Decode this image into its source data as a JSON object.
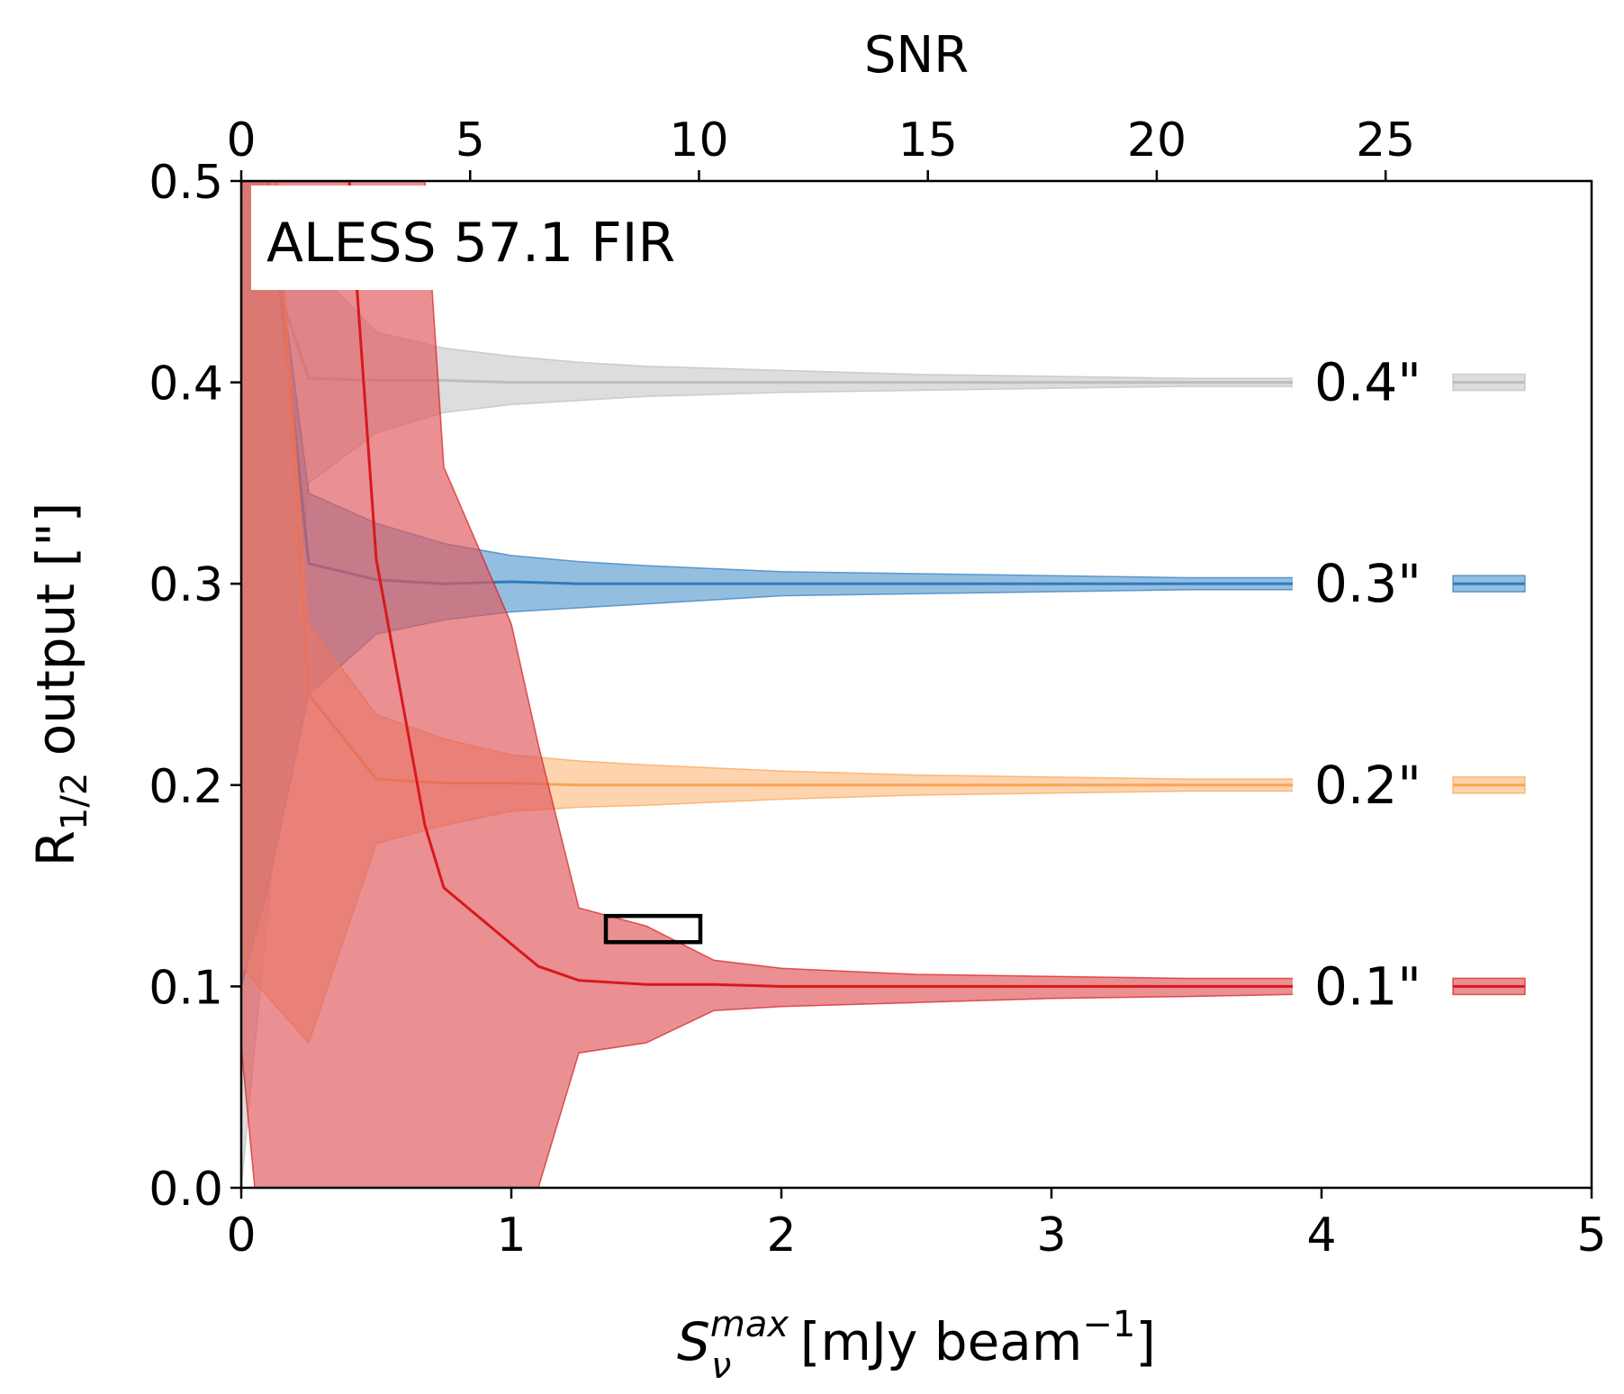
{
  "chart_data": {
    "type": "area",
    "annotation": "ALESS 57.1 FIR",
    "xlabel_main": "S",
    "xlabel_sup": "max",
    "xlabel_sub": "ν",
    "xlabel_rest": " [mJy beam",
    "xlabel_unit_sup": "−1",
    "xlabel_close": "]",
    "ylabel_main": "R",
    "ylabel_sub": "1/2",
    "ylabel_rest": " output [\"]",
    "top_xlabel": "SNR",
    "xlim": [
      0,
      5
    ],
    "ylim": [
      0,
      0.5
    ],
    "top_xlim": [
      0,
      29.5
    ],
    "xticks": [
      0,
      1,
      2,
      3,
      4,
      5
    ],
    "xtick_labels": [
      "0",
      "1",
      "2",
      "3",
      "4",
      "5"
    ],
    "yticks": [
      0,
      0.1,
      0.2,
      0.3,
      0.4,
      0.5
    ],
    "ytick_labels": [
      "0.0",
      "0.1",
      "0.2",
      "0.3",
      "0.4",
      "0.5"
    ],
    "top_xticks": [
      0,
      5,
      10,
      15,
      20,
      25
    ],
    "top_xtick_labels": [
      "0",
      "5",
      "10",
      "15",
      "20",
      "25"
    ],
    "marker_box": {
      "x0": 1.35,
      "x1": 1.7,
      "y0": 0.122,
      "y1": 0.135
    },
    "series": [
      {
        "name": "0.4\"",
        "color": "#bdbdbd",
        "fill": "#c8c8c8",
        "fill_opacity": 0.62,
        "x": [
          0.0,
          0.25,
          0.5,
          0.75,
          1.0,
          1.25,
          1.5,
          2.0,
          2.5,
          3.0,
          3.5,
          3.9
        ],
        "median": [
          0.5,
          0.402,
          0.401,
          0.401,
          0.4,
          0.4,
          0.4,
          0.4,
          0.4,
          0.4,
          0.4,
          0.4
        ],
        "upper": [
          0.5,
          0.46,
          0.425,
          0.417,
          0.413,
          0.41,
          0.408,
          0.406,
          0.404,
          0.403,
          0.402,
          0.402
        ],
        "lower": [
          0.0,
          0.35,
          0.375,
          0.385,
          0.389,
          0.391,
          0.393,
          0.395,
          0.396,
          0.397,
          0.398,
          0.398
        ]
      },
      {
        "name": "0.3\"",
        "color": "#2f7bbf",
        "fill": "#5b9bd0",
        "fill_opacity": 0.65,
        "x": [
          0.0,
          0.1,
          0.25,
          0.5,
          0.75,
          1.0,
          1.25,
          1.5,
          2.0,
          2.5,
          3.0,
          3.5,
          3.9
        ],
        "median": [
          0.5,
          0.5,
          0.31,
          0.302,
          0.3,
          0.301,
          0.3,
          0.3,
          0.3,
          0.3,
          0.3,
          0.3,
          0.3
        ],
        "upper": [
          0.5,
          0.5,
          0.345,
          0.33,
          0.32,
          0.314,
          0.311,
          0.309,
          0.306,
          0.305,
          0.304,
          0.303,
          0.303
        ],
        "lower": [
          0.1,
          0.15,
          0.245,
          0.275,
          0.282,
          0.286,
          0.288,
          0.29,
          0.294,
          0.295,
          0.296,
          0.297,
          0.297
        ]
      },
      {
        "name": "0.2\"",
        "color": "#f9a456",
        "fill": "#fbb97a",
        "fill_opacity": 0.62,
        "x": [
          0.0,
          0.13,
          0.25,
          0.5,
          0.75,
          1.0,
          1.25,
          1.5,
          2.0,
          2.5,
          3.0,
          3.5,
          3.9
        ],
        "median": [
          0.5,
          0.5,
          0.245,
          0.203,
          0.201,
          0.201,
          0.2,
          0.2,
          0.2,
          0.2,
          0.2,
          0.2,
          0.2
        ],
        "upper": [
          0.5,
          0.5,
          0.28,
          0.235,
          0.223,
          0.215,
          0.212,
          0.21,
          0.207,
          0.205,
          0.204,
          0.203,
          0.203
        ],
        "lower": [
          0.11,
          0.09,
          0.072,
          0.171,
          0.18,
          0.187,
          0.189,
          0.19,
          0.193,
          0.195,
          0.196,
          0.197,
          0.197
        ]
      },
      {
        "name": "0.1\"",
        "color": "#d7191c",
        "fill": "#e05a5e",
        "fill_opacity": 0.68,
        "x": [
          0.0,
          0.05,
          0.25,
          0.4,
          0.5,
          0.68,
          0.75,
          1.0,
          1.1,
          1.25,
          1.5,
          1.75,
          2.0,
          2.5,
          3.0,
          3.5,
          3.9
        ],
        "median": [
          0.5,
          0.5,
          0.5,
          0.5,
          0.312,
          0.18,
          0.149,
          0.121,
          0.11,
          0.103,
          0.101,
          0.101,
          0.1,
          0.1,
          0.1,
          0.1,
          0.1
        ],
        "upper": [
          0.5,
          0.5,
          0.5,
          0.5,
          0.5,
          0.5,
          0.358,
          0.28,
          0.22,
          0.139,
          0.13,
          0.113,
          0.109,
          0.106,
          0.105,
          0.104,
          0.104
        ],
        "lower": [
          0.07,
          0.0,
          0.0,
          0.0,
          0.0,
          0.0,
          0.0,
          0.0,
          0.0,
          0.067,
          0.072,
          0.088,
          0.09,
          0.092,
          0.094,
          0.095,
          0.096
        ]
      }
    ]
  }
}
